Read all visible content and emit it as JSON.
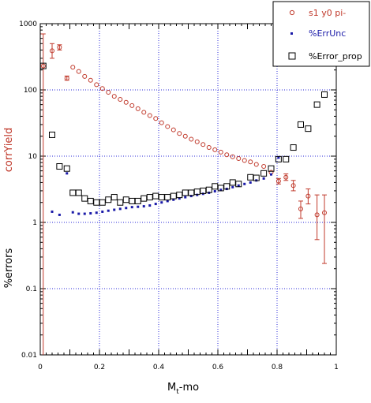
{
  "chart_data": {
    "type": "scatter",
    "xlabel_main": "M",
    "xlabel_sub": "t",
    "xlabel_rest": "-mo",
    "ylabel_top": "corrYield",
    "ylabel_bottom": "%errors",
    "xlim": [
      0,
      1
    ],
    "ylim": [
      0.01,
      1000
    ],
    "yscale": "log",
    "grid": true,
    "x_ticks": [
      "0",
      "0.2",
      "0.4",
      "0.6",
      "0.8",
      "1"
    ],
    "y_ticks": [
      "0.01",
      "0.1",
      "1",
      "10",
      "100",
      "1000"
    ],
    "colors": {
      "corr": "#c0392b",
      "unc": "#1a1aa8",
      "prop": "#000000",
      "grid": "#2a2ad8"
    },
    "series": [
      {
        "name": "s1 y0 pi-",
        "marker": "open-circle",
        "points": [
          {
            "x": 0.01,
            "y": 230,
            "ylo": 0.01,
            "yhi": 700
          },
          {
            "x": 0.04,
            "y": 390,
            "ylo": 300,
            "yhi": 500
          },
          {
            "x": 0.065,
            "y": 440,
            "ylo": 400,
            "yhi": 480
          },
          {
            "x": 0.09,
            "y": 150,
            "ylo": 140,
            "yhi": 162
          },
          {
            "x": 0.11,
            "y": 220
          },
          {
            "x": 0.13,
            "y": 190
          },
          {
            "x": 0.15,
            "y": 160
          },
          {
            "x": 0.17,
            "y": 140
          },
          {
            "x": 0.19,
            "y": 120
          },
          {
            "x": 0.21,
            "y": 105
          },
          {
            "x": 0.23,
            "y": 92
          },
          {
            "x": 0.25,
            "y": 80
          },
          {
            "x": 0.27,
            "y": 72
          },
          {
            "x": 0.29,
            "y": 65
          },
          {
            "x": 0.31,
            "y": 58
          },
          {
            "x": 0.33,
            "y": 52
          },
          {
            "x": 0.35,
            "y": 46
          },
          {
            "x": 0.37,
            "y": 41
          },
          {
            "x": 0.39,
            "y": 37
          },
          {
            "x": 0.41,
            "y": 32
          },
          {
            "x": 0.43,
            "y": 28
          },
          {
            "x": 0.45,
            "y": 25
          },
          {
            "x": 0.47,
            "y": 22
          },
          {
            "x": 0.49,
            "y": 20
          },
          {
            "x": 0.51,
            "y": 18
          },
          {
            "x": 0.53,
            "y": 16.5
          },
          {
            "x": 0.55,
            "y": 15
          },
          {
            "x": 0.57,
            "y": 13.5
          },
          {
            "x": 0.59,
            "y": 12.5
          },
          {
            "x": 0.61,
            "y": 11.5
          },
          {
            "x": 0.63,
            "y": 10.5
          },
          {
            "x": 0.65,
            "y": 9.8
          },
          {
            "x": 0.67,
            "y": 9.2
          },
          {
            "x": 0.69,
            "y": 8.6
          },
          {
            "x": 0.71,
            "y": 8.2
          },
          {
            "x": 0.73,
            "y": 7.5
          },
          {
            "x": 0.755,
            "y": 7.0
          },
          {
            "x": 0.78,
            "y": 5.7
          },
          {
            "x": 0.805,
            "y": 4.2,
            "ylo": 3.8,
            "yhi": 4.6
          },
          {
            "x": 0.83,
            "y": 4.8,
            "ylo": 4.3,
            "yhi": 5.4
          },
          {
            "x": 0.855,
            "y": 3.6,
            "ylo": 3.0,
            "yhi": 4.3
          },
          {
            "x": 0.88,
            "y": 1.6,
            "ylo": 1.15,
            "yhi": 2.1
          },
          {
            "x": 0.905,
            "y": 2.5,
            "ylo": 1.9,
            "yhi": 3.2
          },
          {
            "x": 0.935,
            "y": 1.3,
            "ylo": 0.55,
            "yhi": 2.6
          },
          {
            "x": 0.96,
            "y": 1.4,
            "ylo": 0.24,
            "yhi": 2.6
          }
        ]
      },
      {
        "name": "%ErrUnc",
        "marker": "filled-square-small",
        "points": [
          {
            "x": 0.04,
            "y": 1.45
          },
          {
            "x": 0.065,
            "y": 1.3
          },
          {
            "x": 0.09,
            "y": 5.5
          },
          {
            "x": 0.11,
            "y": 1.42
          },
          {
            "x": 0.13,
            "y": 1.35
          },
          {
            "x": 0.15,
            "y": 1.35
          },
          {
            "x": 0.17,
            "y": 1.37
          },
          {
            "x": 0.19,
            "y": 1.4
          },
          {
            "x": 0.21,
            "y": 1.45
          },
          {
            "x": 0.23,
            "y": 1.5
          },
          {
            "x": 0.25,
            "y": 1.55
          },
          {
            "x": 0.27,
            "y": 1.6
          },
          {
            "x": 0.29,
            "y": 1.65
          },
          {
            "x": 0.31,
            "y": 1.7
          },
          {
            "x": 0.33,
            "y": 1.72
          },
          {
            "x": 0.35,
            "y": 1.75
          },
          {
            "x": 0.37,
            "y": 1.8
          },
          {
            "x": 0.39,
            "y": 1.9
          },
          {
            "x": 0.41,
            "y": 2.0
          },
          {
            "x": 0.43,
            "y": 2.1
          },
          {
            "x": 0.45,
            "y": 2.2
          },
          {
            "x": 0.47,
            "y": 2.3
          },
          {
            "x": 0.49,
            "y": 2.4
          },
          {
            "x": 0.51,
            "y": 2.5
          },
          {
            "x": 0.53,
            "y": 2.6
          },
          {
            "x": 0.55,
            "y": 2.7
          },
          {
            "x": 0.57,
            "y": 2.8
          },
          {
            "x": 0.59,
            "y": 2.95
          },
          {
            "x": 0.61,
            "y": 3.1
          },
          {
            "x": 0.63,
            "y": 3.2
          },
          {
            "x": 0.65,
            "y": 3.4
          },
          {
            "x": 0.67,
            "y": 3.6
          },
          {
            "x": 0.69,
            "y": 3.8
          },
          {
            "x": 0.71,
            "y": 4.0
          },
          {
            "x": 0.73,
            "y": 4.3
          },
          {
            "x": 0.755,
            "y": 4.6
          },
          {
            "x": 0.78,
            "y": 5.3
          },
          {
            "x": 0.805,
            "y": 9.5
          }
        ]
      },
      {
        "name": "%Error_prop",
        "marker": "open-square",
        "points": [
          {
            "x": 0.01,
            "y": 230
          },
          {
            "x": 0.04,
            "y": 21
          },
          {
            "x": 0.065,
            "y": 7.0
          },
          {
            "x": 0.09,
            "y": 6.5
          },
          {
            "x": 0.11,
            "y": 2.8
          },
          {
            "x": 0.13,
            "y": 2.8
          },
          {
            "x": 0.15,
            "y": 2.3
          },
          {
            "x": 0.17,
            "y": 2.1
          },
          {
            "x": 0.19,
            "y": 2.0
          },
          {
            "x": 0.21,
            "y": 2.0
          },
          {
            "x": 0.23,
            "y": 2.2
          },
          {
            "x": 0.25,
            "y": 2.4
          },
          {
            "x": 0.27,
            "y": 2.0
          },
          {
            "x": 0.29,
            "y": 2.2
          },
          {
            "x": 0.31,
            "y": 2.1
          },
          {
            "x": 0.33,
            "y": 2.1
          },
          {
            "x": 0.35,
            "y": 2.3
          },
          {
            "x": 0.37,
            "y": 2.4
          },
          {
            "x": 0.39,
            "y": 2.5
          },
          {
            "x": 0.41,
            "y": 2.4
          },
          {
            "x": 0.43,
            "y": 2.4
          },
          {
            "x": 0.45,
            "y": 2.5
          },
          {
            "x": 0.47,
            "y": 2.6
          },
          {
            "x": 0.49,
            "y": 2.8
          },
          {
            "x": 0.51,
            "y": 2.8
          },
          {
            "x": 0.53,
            "y": 2.9
          },
          {
            "x": 0.55,
            "y": 3.0
          },
          {
            "x": 0.57,
            "y": 3.1
          },
          {
            "x": 0.59,
            "y": 3.5
          },
          {
            "x": 0.61,
            "y": 3.3
          },
          {
            "x": 0.63,
            "y": 3.5
          },
          {
            "x": 0.65,
            "y": 4.0
          },
          {
            "x": 0.67,
            "y": 3.8
          },
          {
            "x": 0.71,
            "y": 4.8
          },
          {
            "x": 0.73,
            "y": 4.7
          },
          {
            "x": 0.755,
            "y": 5.5
          },
          {
            "x": 0.78,
            "y": 6.5
          },
          {
            "x": 0.805,
            "y": 9.0
          },
          {
            "x": 0.83,
            "y": 9.0
          },
          {
            "x": 0.855,
            "y": 13.5
          },
          {
            "x": 0.88,
            "y": 30
          },
          {
            "x": 0.905,
            "y": 26
          },
          {
            "x": 0.935,
            "y": 60
          },
          {
            "x": 0.96,
            "y": 85
          }
        ]
      }
    ],
    "legend": {
      "position": "top-right",
      "entries": [
        "s1 y0 pi-",
        "%ErrUnc",
        "%Error_prop"
      ]
    }
  }
}
